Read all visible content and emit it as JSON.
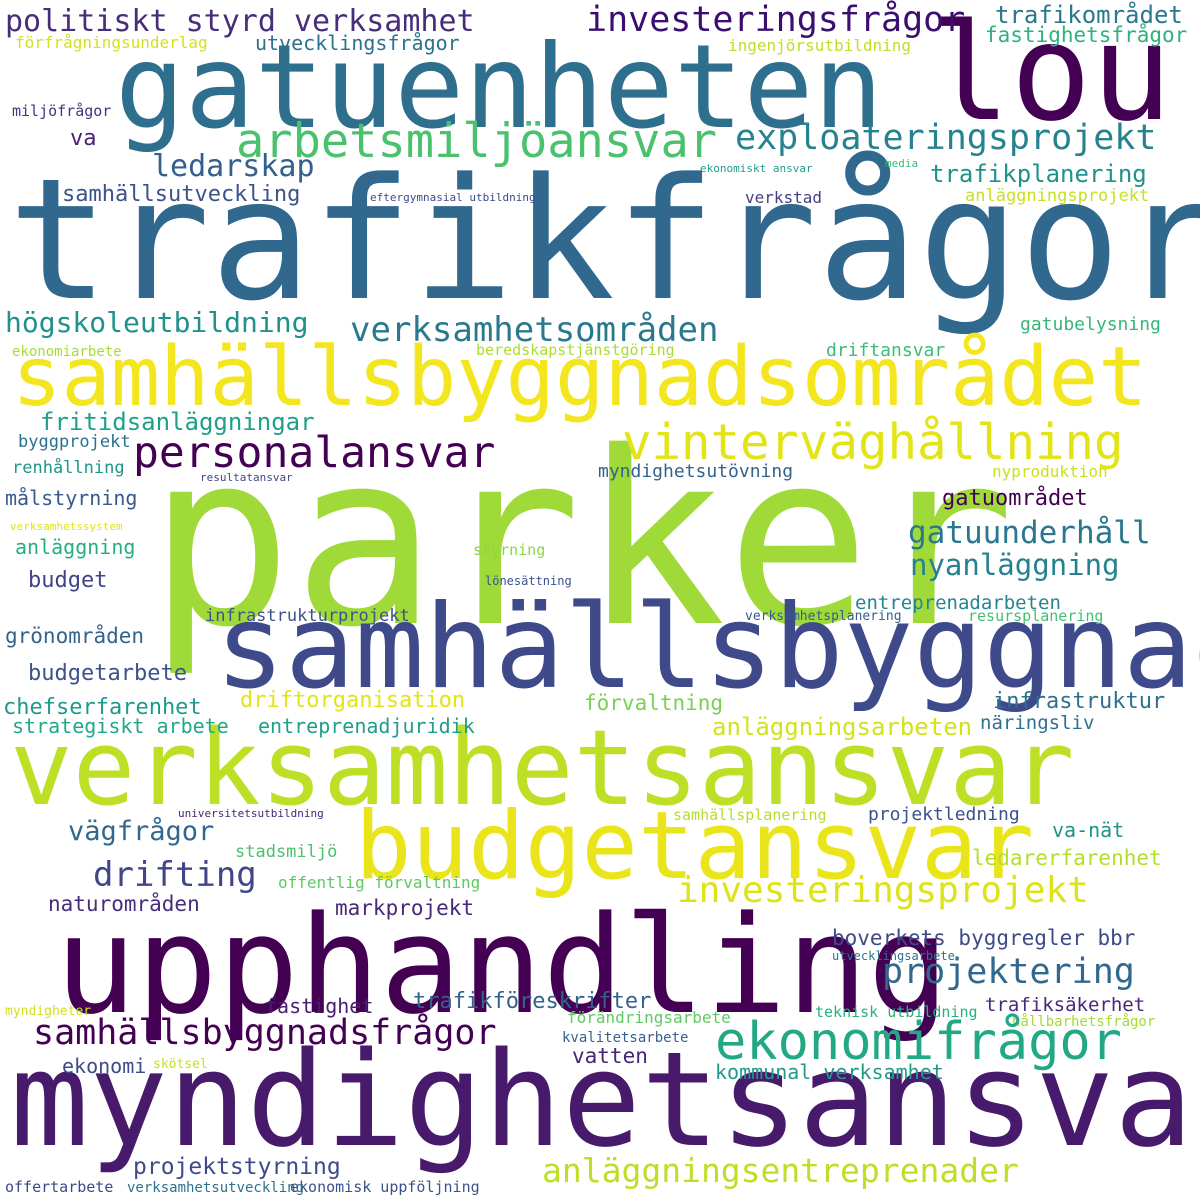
{
  "words": [
    {
      "text": "trafikfrågor",
      "color": "#31688e"
    },
    {
      "text": "parker",
      "color": "#a0da39"
    },
    {
      "text": "gatuenheten",
      "color": "#2e6f8e"
    },
    {
      "text": "lou",
      "color": "#440154"
    },
    {
      "text": "samhällsbyggnadsområdet",
      "color": "#f4e61e"
    },
    {
      "text": "samhällsbyggnad",
      "color": "#3e4a89"
    },
    {
      "text": "verksamhetsansvar",
      "color": "#bddf26"
    },
    {
      "text": "upphandling",
      "color": "#440154"
    },
    {
      "text": "myndighetsansvar",
      "color": "#481a6c"
    },
    {
      "text": "budgetansvar",
      "color": "#eae51a"
    },
    {
      "text": "vinterväghållning",
      "color": "#e2e418"
    },
    {
      "text": "arbetsmiljöansvar",
      "color": "#4ac16d"
    },
    {
      "text": "exploateringsprojekt",
      "color": "#26828e"
    },
    {
      "text": "investeringsfrågor",
      "color": "#3b0f70"
    },
    {
      "text": "politiskt styrd verksamhet",
      "color": "#472d7b"
    },
    {
      "text": "trafikområdet",
      "color": "#2a788e"
    },
    {
      "text": "fastighetsfrågor",
      "color": "#2db27d"
    },
    {
      "text": "förfrågningsunderlag",
      "color": "#d2e21b"
    },
    {
      "text": "utvecklingsfrågor",
      "color": "#2c728e"
    },
    {
      "text": "ingenjörsutbildning",
      "color": "#bddf26"
    },
    {
      "text": "miljöfrågor",
      "color": "#46327e"
    },
    {
      "text": "ledarskap",
      "color": "#34608d"
    },
    {
      "text": "va",
      "color": "#482374"
    },
    {
      "text": "samhällsutveckling",
      "color": "#3b528b"
    },
    {
      "text": "eftergymnasial utbildning",
      "color": "#3e4a89"
    },
    {
      "text": "ekonomiskt ansvar",
      "color": "#1f9e89"
    },
    {
      "text": "media",
      "color": "#3bbb75"
    },
    {
      "text": "trafikplanering",
      "color": "#20928c"
    },
    {
      "text": "verkstad",
      "color": "#433e85"
    },
    {
      "text": "anläggningsprojekt",
      "color": "#c8e020"
    },
    {
      "text": "högskoleutbildning",
      "color": "#21918c"
    },
    {
      "text": "verksamhetsområden",
      "color": "#2a788e"
    },
    {
      "text": "gatubelysning",
      "color": "#35b779"
    },
    {
      "text": "ekonomiarbete",
      "color": "#a8db34"
    },
    {
      "text": "beredskapstjänstgöring",
      "color": "#addc30"
    },
    {
      "text": "driftansvar",
      "color": "#3dbc74"
    },
    {
      "text": "personalansvar",
      "color": "#440154"
    },
    {
      "text": "fritidsanläggningar",
      "color": "#1fa088"
    },
    {
      "text": "byggprojekt",
      "color": "#2d708e"
    },
    {
      "text": "renhållning",
      "color": "#1f958b"
    },
    {
      "text": "resultatansvar",
      "color": "#414487"
    },
    {
      "text": "myndighetsutövning",
      "color": "#33638d"
    },
    {
      "text": "nyproduktion",
      "color": "#cae11f"
    },
    {
      "text": "målstyrning",
      "color": "#38598c"
    },
    {
      "text": "gatuområdet",
      "color": "#440154"
    },
    {
      "text": "verksamhetssystem",
      "color": "#dde318"
    },
    {
      "text": "gatuunderhåll",
      "color": "#2a788e"
    },
    {
      "text": "anläggning",
      "color": "#27ad81"
    },
    {
      "text": "nyanläggning",
      "color": "#26828e"
    },
    {
      "text": "styrning",
      "color": "#8bd646"
    },
    {
      "text": "budget",
      "color": "#414487"
    },
    {
      "text": "lönesättning",
      "color": "#3b528b"
    },
    {
      "text": "entreprenadarbeten",
      "color": "#25858e"
    },
    {
      "text": "infrastrukturprojekt",
      "color": "#3b528b"
    },
    {
      "text": "verksamhetsplanering",
      "color": "#365c8d"
    },
    {
      "text": "resursplanering",
      "color": "#44bf70"
    },
    {
      "text": "grönområden",
      "color": "#33638d"
    },
    {
      "text": "budgetarbete",
      "color": "#3b528b"
    },
    {
      "text": "driftorganisation",
      "color": "#e2e418"
    },
    {
      "text": "förvaltning",
      "color": "#7ad151"
    },
    {
      "text": "infrastruktur",
      "color": "#2c728e"
    },
    {
      "text": "chefserfarenhet",
      "color": "#1f9a8a"
    },
    {
      "text": "strategiskt arbete",
      "color": "#22a884"
    },
    {
      "text": "entreprenadjuridik",
      "color": "#1f9e89"
    },
    {
      "text": "anläggningsarbeten",
      "color": "#d2e21b"
    },
    {
      "text": "näringsliv",
      "color": "#2c728e"
    },
    {
      "text": "universitetsutbildning",
      "color": "#482475"
    },
    {
      "text": "samhällsplanering",
      "color": "#b5de2b"
    },
    {
      "text": "projektledning",
      "color": "#3b528b"
    },
    {
      "text": "vägfrågor",
      "color": "#31688e"
    },
    {
      "text": "va-nät",
      "color": "#21918c"
    },
    {
      "text": "stadsmiljö",
      "color": "#4ac16d"
    },
    {
      "text": "ledarerfarenhet",
      "color": "#b5de2b"
    },
    {
      "text": "drifting",
      "color": "#404688"
    },
    {
      "text": "offentlig förvaltning",
      "color": "#5ec962"
    },
    {
      "text": "investeringsprojekt",
      "color": "#dde318"
    },
    {
      "text": "naturområden",
      "color": "#472d7b"
    },
    {
      "text": "markprojekt",
      "color": "#482878"
    },
    {
      "text": "boverkets byggregler bbr",
      "color": "#3e4a89"
    },
    {
      "text": "projektering",
      "color": "#31688e"
    },
    {
      "text": "utvecklingsarbete",
      "color": "#2c728e"
    },
    {
      "text": "samhällsbyggnadsfrågor",
      "color": "#440154"
    },
    {
      "text": "fastighet",
      "color": "#481f70"
    },
    {
      "text": "trafikföreskrifter",
      "color": "#33638d"
    },
    {
      "text": "trafiksäkerhet",
      "color": "#482878"
    },
    {
      "text": "myndigheter",
      "color": "#d2e21b"
    },
    {
      "text": "teknisk utbildning",
      "color": "#2ab07f"
    },
    {
      "text": "förändringsarbete",
      "color": "#5ec962"
    },
    {
      "text": "hållbarhetsfrågor",
      "color": "#a5db36"
    },
    {
      "text": "ekonomifrågor",
      "color": "#22a884"
    },
    {
      "text": "kvalitetsarbete",
      "color": "#355f8d"
    },
    {
      "text": "ekonomi",
      "color": "#3e4a89"
    },
    {
      "text": "skötsel",
      "color": "#c8e020"
    },
    {
      "text": "vatten",
      "color": "#482475"
    },
    {
      "text": "kommunal verksamhet",
      "color": "#1e9b8a"
    },
    {
      "text": "projektstyrning",
      "color": "#3e4a89"
    },
    {
      "text": "anläggningsentreprenader",
      "color": "#bddf26"
    },
    {
      "text": "offertarbete",
      "color": "#3f4788"
    },
    {
      "text": "verksamhetsutveckling",
      "color": "#2c728e"
    },
    {
      "text": "ekonomisk uppföljning",
      "color": "#3b528b"
    }
  ]
}
